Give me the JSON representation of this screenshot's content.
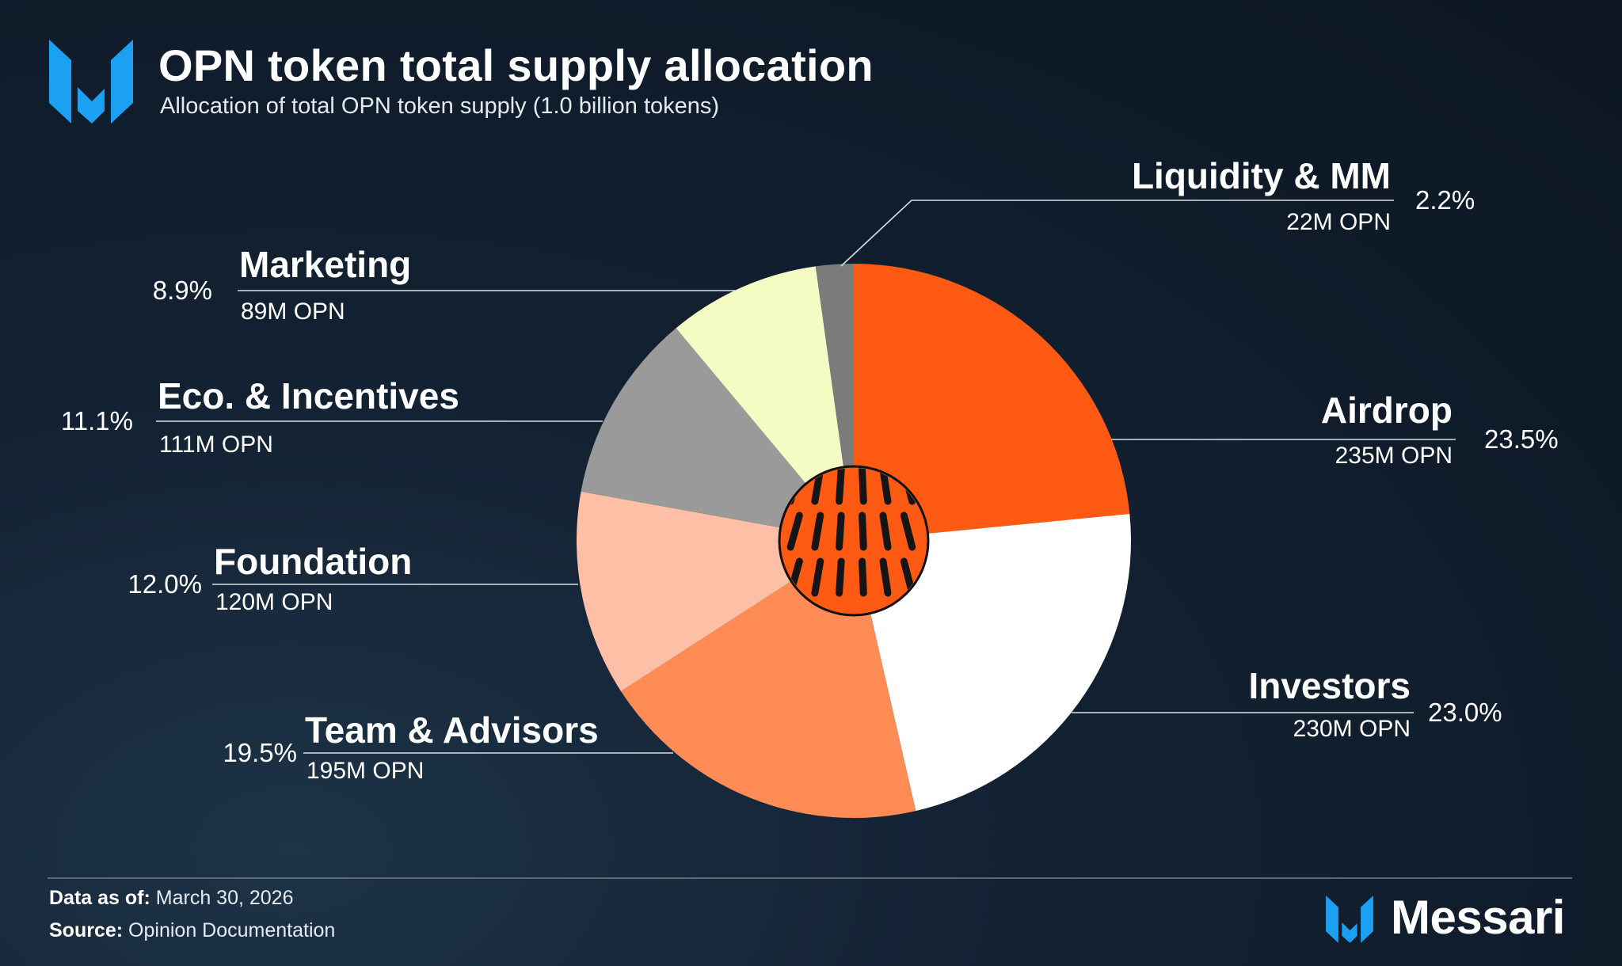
{
  "header": {
    "logo_icon": "messari-m-logo-icon",
    "title": "OPN token total supply allocation",
    "subtitle": "Allocation of total OPN token supply (1.0 billion tokens)"
  },
  "chart_data": {
    "type": "pie",
    "title": "OPN token total supply allocation",
    "subtitle": "Allocation of total OPN token supply (1.0 billion tokens)",
    "total_supply": "1.0 billion tokens",
    "center_icon": "opinion-logo-icon",
    "start": "12 o'clock",
    "direction": "clockwise",
    "slices": [
      {
        "label": "Airdrop",
        "value": 23.5,
        "pct_label": "23.5%",
        "amount_label": "235M OPN",
        "color": "#ff5a14",
        "side": "right"
      },
      {
        "label": "Investors",
        "value": 23.0,
        "pct_label": "23.0%",
        "amount_label": "230M OPN",
        "color": "#ffffff",
        "side": "right"
      },
      {
        "label": "Team & Advisors",
        "value": 19.5,
        "pct_label": "19.5%",
        "amount_label": "195M OPN",
        "color": "#ff8c55",
        "side": "left"
      },
      {
        "label": "Foundation",
        "value": 12.0,
        "pct_label": "12.0%",
        "amount_label": "120M OPN",
        "color": "#fdbfa5",
        "side": "left"
      },
      {
        "label": "Eco. & Incentives",
        "value": 11.1,
        "pct_label": "11.1%",
        "amount_label": "111M OPN",
        "color": "#9b9a9b",
        "side": "left"
      },
      {
        "label": "Marketing",
        "value": 8.9,
        "pct_label": "8.9%",
        "amount_label": "89M OPN",
        "color": "#f4fcc4",
        "side": "left"
      },
      {
        "label": "Liquidity & MM",
        "value": 2.2,
        "pct_label": "2.2%",
        "amount_label": "22M OPN",
        "color": "#7b7b7b",
        "side": "right"
      }
    ]
  },
  "footer": {
    "as_of_label": "Data as of:",
    "as_of_value": "March 30, 2026",
    "source_label": "Source:",
    "source_value": "Opinion Documentation",
    "brand_icon": "messari-m-logo-icon",
    "brand_name": "Messari"
  },
  "colors": {
    "brand_blue": "#1ba0f2",
    "leader_line": "#d7dde3",
    "divider": "#5c6873"
  }
}
